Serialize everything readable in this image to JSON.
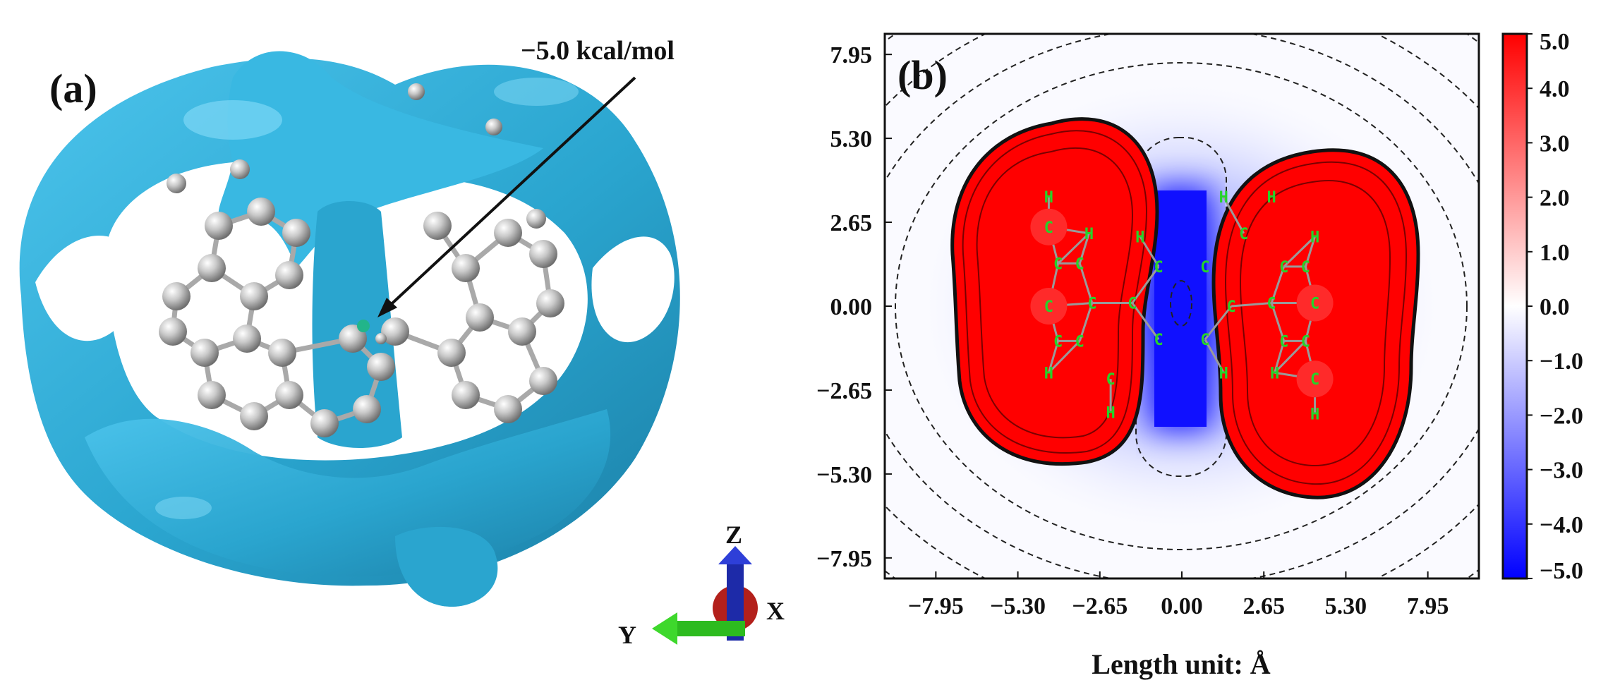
{
  "panel_a": {
    "label": "(a)",
    "annotation": "−5.0 kcal/mol",
    "axes": {
      "z": "Z",
      "x": "X",
      "y": "Y"
    },
    "colors": {
      "isosurface": "#2aa5cf",
      "atom": "#c8c8c8",
      "bond": "#b4b4b4",
      "z_axis": "#1d2aa8",
      "x_axis": "#b3201b",
      "y_axis": "#2dbb1f"
    }
  },
  "panel_b": {
    "label": "(b)",
    "colors": {
      "positive": "#ff0000",
      "zero": "#ffffff",
      "negative": "#0000ff",
      "atom_label": "#25d32a"
    }
  },
  "chart_data": {
    "type": "heatmap",
    "xlabel": "Length unit: Å",
    "ylabel": "",
    "xlim": [
      -9.6,
      9.6
    ],
    "ylim": [
      -8.6,
      8.6
    ],
    "x_ticks": [
      -7.95,
      -5.3,
      -2.65,
      0.0,
      2.65,
      5.3,
      7.95
    ],
    "x_tick_labels": [
      "−7.95",
      "−5.30",
      "−2.65",
      "0.00",
      "2.65",
      "5.30",
      "7.95"
    ],
    "y_ticks": [
      7.95,
      5.3,
      2.65,
      0.0,
      -2.65,
      -5.3,
      -7.95
    ],
    "y_tick_labels": [
      "7.95",
      "5.30",
      "2.65",
      "0.00",
      "−2.65",
      "−5.30",
      "−7.95"
    ],
    "colorbar": {
      "range": [
        -5.0,
        5.0
      ],
      "ticks": [
        5.0,
        4.0,
        3.0,
        2.0,
        1.0,
        0.0,
        -1.0,
        -2.0,
        -3.0,
        -4.0,
        -5.0
      ],
      "tick_labels": [
        "5.0",
        "4.0",
        "3.0",
        "2.0",
        "1.0",
        "0.0",
        "−1.0",
        "−2.0",
        "−3.0",
        "−4.0",
        "−5.0"
      ]
    },
    "atoms": [
      {
        "el": "H",
        "x": -4.3,
        "y": 3.45
      },
      {
        "el": "C",
        "x": -4.3,
        "y": 2.5
      },
      {
        "el": "H",
        "x": -3.0,
        "y": 2.3
      },
      {
        "el": "C",
        "x": -4.0,
        "y": 1.35
      },
      {
        "el": "C",
        "x": -3.3,
        "y": 1.35
      },
      {
        "el": "C",
        "x": -4.3,
        "y": 0.0
      },
      {
        "el": "C",
        "x": -2.9,
        "y": 0.1
      },
      {
        "el": "C",
        "x": -1.6,
        "y": 0.1
      },
      {
        "el": "C",
        "x": -4.0,
        "y": -1.1
      },
      {
        "el": "C",
        "x": -3.3,
        "y": -1.1
      },
      {
        "el": "H",
        "x": -4.3,
        "y": -2.1
      },
      {
        "el": "C",
        "x": -2.3,
        "y": -2.3
      },
      {
        "el": "H",
        "x": -2.3,
        "y": -3.35
      },
      {
        "el": "H",
        "x": -1.35,
        "y": 2.2
      },
      {
        "el": "C",
        "x": -0.75,
        "y": 1.25
      },
      {
        "el": "C",
        "x": 0.75,
        "y": 1.25
      },
      {
        "el": "C",
        "x": -0.75,
        "y": -1.05
      },
      {
        "el": "C",
        "x": 0.75,
        "y": -1.05
      },
      {
        "el": "H",
        "x": 1.35,
        "y": -2.1
      },
      {
        "el": "H",
        "x": 1.35,
        "y": 3.45
      },
      {
        "el": "C",
        "x": 2.0,
        "y": 2.3
      },
      {
        "el": "H",
        "x": 2.9,
        "y": 3.45
      },
      {
        "el": "C",
        "x": 1.6,
        "y": 0.0
      },
      {
        "el": "C",
        "x": 2.9,
        "y": 0.1
      },
      {
        "el": "C",
        "x": 3.3,
        "y": 1.25
      },
      {
        "el": "C",
        "x": 4.0,
        "y": 1.25
      },
      {
        "el": "H",
        "x": 4.3,
        "y": 2.2
      },
      {
        "el": "C",
        "x": 4.3,
        "y": 0.1
      },
      {
        "el": "C",
        "x": 3.3,
        "y": -1.1
      },
      {
        "el": "C",
        "x": 4.0,
        "y": -1.1
      },
      {
        "el": "H",
        "x": 3.0,
        "y": -2.1
      },
      {
        "el": "C",
        "x": 4.3,
        "y": -2.3
      },
      {
        "el": "H",
        "x": 4.3,
        "y": -3.4
      }
    ]
  }
}
